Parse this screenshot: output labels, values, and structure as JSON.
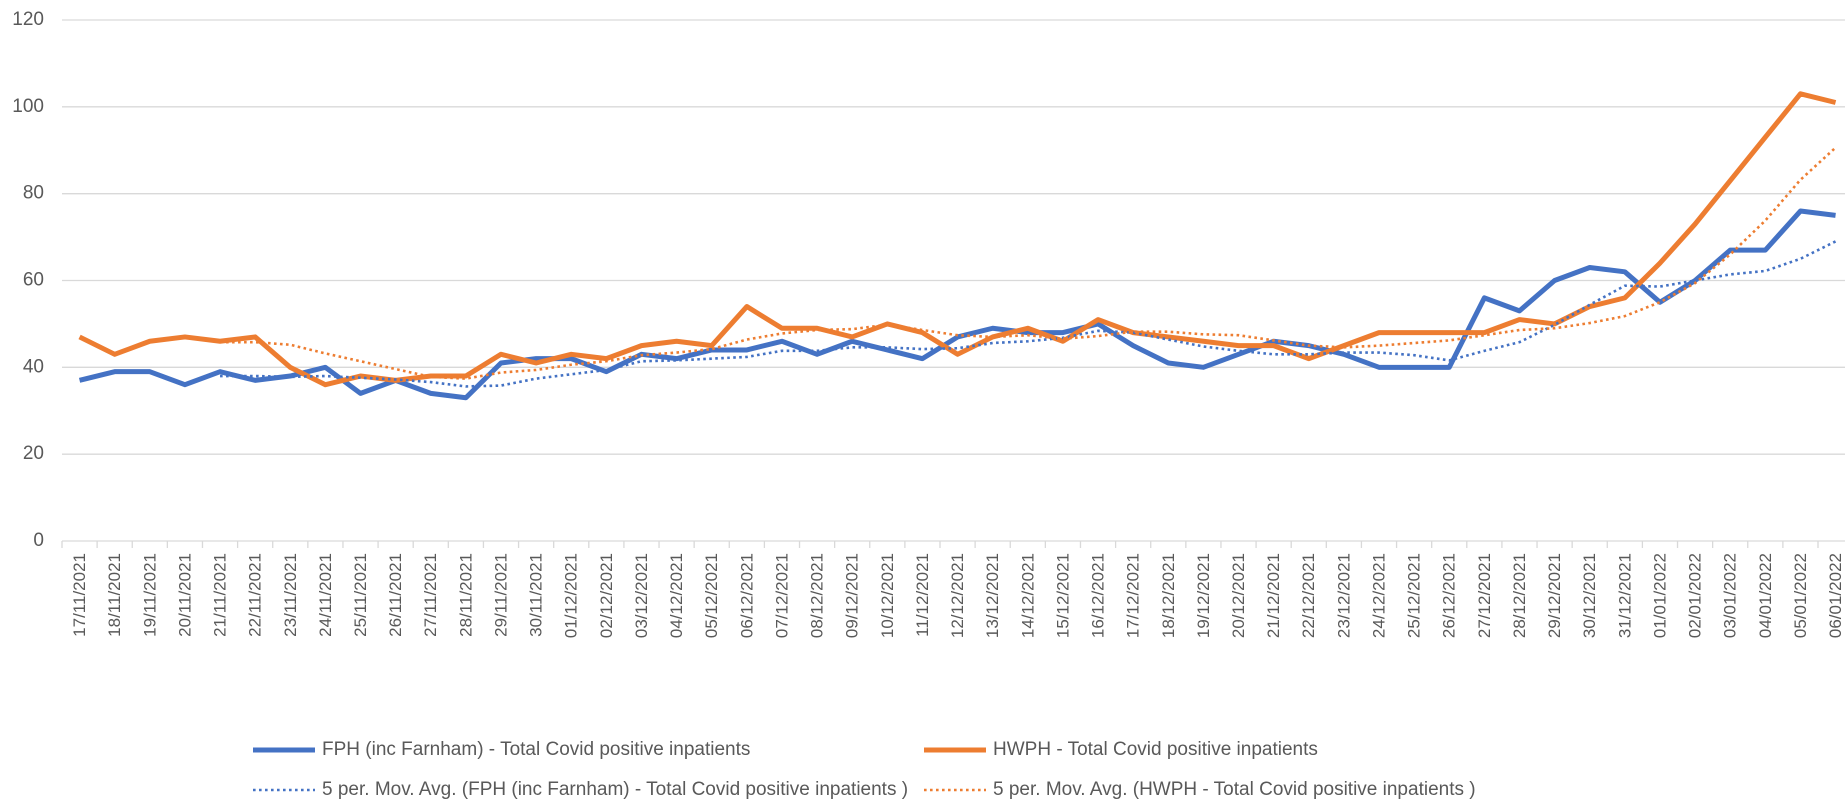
{
  "chart_data": {
    "type": "line",
    "categories": [
      "17/11/2021",
      "18/11/2021",
      "19/11/2021",
      "20/11/2021",
      "21/11/2021",
      "22/11/2021",
      "23/11/2021",
      "24/11/2021",
      "25/11/2021",
      "26/11/2021",
      "27/11/2021",
      "28/11/2021",
      "29/11/2021",
      "30/11/2021",
      "01/12/2021",
      "02/12/2021",
      "03/12/2021",
      "04/12/2021",
      "05/12/2021",
      "06/12/2021",
      "07/12/2021",
      "08/12/2021",
      "09/12/2021",
      "10/12/2021",
      "11/12/2021",
      "12/12/2021",
      "13/12/2021",
      "14/12/2021",
      "15/12/2021",
      "16/12/2021",
      "17/12/2021",
      "18/12/2021",
      "19/12/2021",
      "20/12/2021",
      "21/12/2021",
      "22/12/2021",
      "23/12/2021",
      "24/12/2021",
      "25/12/2021",
      "26/12/2021",
      "27/12/2021",
      "28/12/2021",
      "29/12/2021",
      "30/12/2021",
      "31/12/2021",
      "01/01/2022",
      "02/01/2022",
      "03/01/2022",
      "04/01/2022",
      "05/01/2022",
      "06/01/2022"
    ],
    "series": [
      {
        "name": "FPH (inc Farnham) - Total Covid positive inpatients",
        "color": "#4472c4",
        "style": "solid",
        "values": [
          37,
          39,
          39,
          36,
          39,
          37,
          38,
          40,
          34,
          37,
          34,
          33,
          41,
          42,
          42,
          39,
          43,
          42,
          44,
          44,
          46,
          43,
          46,
          44,
          42,
          47,
          49,
          48,
          48,
          50,
          45,
          41,
          40,
          43,
          46,
          45,
          43,
          40,
          40,
          40,
          56,
          53,
          60,
          63,
          62,
          55,
          60,
          67,
          67,
          76,
          75
        ]
      },
      {
        "name": "HWPH - Total Covid positive inpatients",
        "color": "#ed7d31",
        "style": "solid",
        "values": [
          47,
          43,
          46,
          47,
          46,
          47,
          40,
          36,
          38,
          37,
          38,
          38,
          43,
          41,
          43,
          42,
          45,
          46,
          45,
          54,
          49,
          49,
          47,
          50,
          48,
          43,
          47,
          49,
          46,
          51,
          48,
          47,
          46,
          45,
          45,
          42,
          45,
          48,
          48,
          48,
          48,
          51,
          50,
          54,
          56,
          64,
          73,
          83,
          93,
          103,
          101
        ]
      },
      {
        "name": "5 per. Mov. Avg. (FPH (inc Farnham) - Total Covid positive inpatients )",
        "color": "#4472c4",
        "style": "dotted",
        "values": [
          null,
          null,
          null,
          null,
          38,
          38,
          37.8,
          38,
          37.6,
          37.2,
          36.6,
          35.6,
          35.8,
          37.4,
          38.4,
          39.4,
          41.4,
          41.6,
          42,
          42.4,
          43.8,
          43.8,
          44.6,
          44.6,
          44.2,
          44.4,
          45.6,
          46,
          46.8,
          48.4,
          48,
          46.4,
          44.8,
          43.8,
          43,
          43,
          43.4,
          43.4,
          42.8,
          41.6,
          43.8,
          45.8,
          49.8,
          54.4,
          58.8,
          58.6,
          60,
          61.4,
          62.2,
          65,
          69
        ]
      },
      {
        "name": "5 per. Mov. Avg. (HWPH - Total Covid positive inpatients )",
        "color": "#ed7d31",
        "style": "dotted",
        "values": [
          null,
          null,
          null,
          null,
          45.8,
          45.8,
          45.2,
          43.2,
          41.4,
          39.6,
          37.8,
          37.4,
          38.8,
          39.4,
          40.6,
          41.4,
          42.8,
          43.4,
          44.2,
          46.4,
          47.8,
          48.6,
          48.8,
          49.8,
          48.6,
          47.4,
          47,
          47.4,
          46.6,
          47.2,
          48.2,
          48.2,
          47.6,
          47.4,
          46.2,
          45,
          44.6,
          45,
          45.6,
          46.2,
          47.4,
          48.6,
          49,
          50.2,
          51.8,
          55,
          59.4,
          66,
          73.8,
          83.2,
          90.6
        ]
      }
    ],
    "ylim": [
      0,
      120
    ],
    "yticks": [
      0,
      20,
      40,
      60,
      80,
      100,
      120
    ],
    "grid": true,
    "legend": "bottom"
  }
}
